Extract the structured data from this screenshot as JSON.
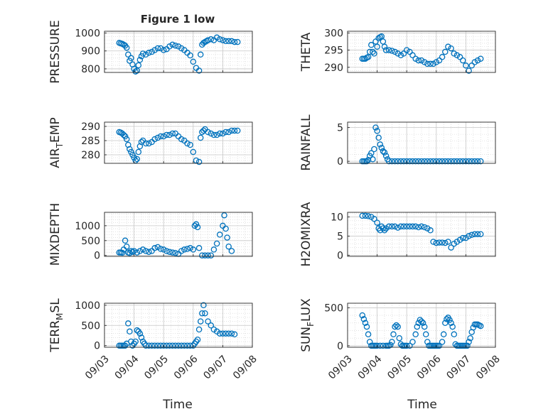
{
  "figure": {
    "title": "Figure 1 low",
    "xlabel": "Time"
  },
  "colors": {
    "marker": "#0072BD",
    "axis": "#262626",
    "grid": "#d0d0d0",
    "background": "#ffffff"
  },
  "chart_data": [
    {
      "type": "scatter",
      "marker": "circle-open",
      "title": "Figure 1 low",
      "ylabel": "PRESSURE",
      "xlim": [
        "09/03",
        "09/08"
      ],
      "ylim": [
        780,
        1010
      ],
      "yticks": [
        800,
        900,
        1000
      ],
      "xticks": [
        "09/03",
        "09/04",
        "09/05",
        "09/06",
        "09/07",
        "09/08"
      ],
      "grid": "minor",
      "x": [
        3.5,
        3.55,
        3.6,
        3.65,
        3.7,
        3.75,
        3.8,
        3.85,
        3.9,
        3.95,
        4.0,
        4.05,
        4.1,
        4.15,
        4.2,
        4.25,
        4.3,
        4.4,
        4.5,
        4.6,
        4.7,
        4.8,
        4.9,
        5.0,
        5.1,
        5.2,
        5.3,
        5.4,
        5.5,
        5.6,
        5.7,
        5.8,
        5.9,
        6.0,
        6.1,
        6.2,
        6.25,
        6.3,
        6.35,
        6.4,
        6.45,
        6.5,
        6.6,
        6.7,
        6.8,
        6.9,
        7.0,
        7.1,
        7.2,
        7.3,
        7.4,
        7.5
      ],
      "y": [
        945,
        942,
        940,
        935,
        930,
        918,
        880,
        845,
        860,
        825,
        800,
        785,
        790,
        820,
        850,
        870,
        885,
        880,
        890,
        895,
        905,
        915,
        915,
        905,
        910,
        925,
        935,
        930,
        925,
        915,
        905,
        890,
        875,
        840,
        805,
        790,
        880,
        935,
        945,
        950,
        955,
        960,
        965,
        960,
        975,
        965,
        960,
        955,
        955,
        955,
        950,
        950
      ]
    },
    {
      "type": "scatter",
      "marker": "circle-open",
      "ylabel": "THETA",
      "xlim": [
        "09/03",
        "09/08"
      ],
      "ylim": [
        288.5,
        300.5
      ],
      "yticks": [
        290,
        295,
        300
      ],
      "xticks": [
        "09/03",
        "09/04",
        "09/05",
        "09/06",
        "09/07",
        "09/08"
      ],
      "grid": "minor",
      "x": [
        3.5,
        3.55,
        3.6,
        3.65,
        3.7,
        3.75,
        3.8,
        3.85,
        3.9,
        3.95,
        4.0,
        4.05,
        4.1,
        4.15,
        4.2,
        4.25,
        4.3,
        4.4,
        4.5,
        4.6,
        4.7,
        4.8,
        4.9,
        5.0,
        5.1,
        5.2,
        5.3,
        5.4,
        5.5,
        5.6,
        5.7,
        5.8,
        5.9,
        6.0,
        6.1,
        6.2,
        6.3,
        6.4,
        6.5,
        6.6,
        6.7,
        6.8,
        6.9,
        7.0,
        7.1,
        7.2,
        7.3,
        7.4,
        7.5
      ],
      "y": [
        292.5,
        292.5,
        292.5,
        292.8,
        293.0,
        294.5,
        296.5,
        294.5,
        294.0,
        297.5,
        296.0,
        298.5,
        298.8,
        299.0,
        297.5,
        296.0,
        295.0,
        295.0,
        294.8,
        294.5,
        294.0,
        293.5,
        294.0,
        295.0,
        294.5,
        293.5,
        292.5,
        292.0,
        292.0,
        291.5,
        291.0,
        291.0,
        291.0,
        291.5,
        292.0,
        293.0,
        294.5,
        296.0,
        295.5,
        294.0,
        293.5,
        293.0,
        292.0,
        290.5,
        289.0,
        290.5,
        291.5,
        292.0,
        292.5
      ]
    },
    {
      "type": "scatter",
      "marker": "circle-open",
      "ylabel": "AIR_TEMP",
      "xlim": [
        "09/03",
        "09/08"
      ],
      "ylim": [
        277,
        291.5
      ],
      "yticks": [
        280,
        285,
        290
      ],
      "xticks": [
        "09/03",
        "09/04",
        "09/05",
        "09/06",
        "09/07",
        "09/08"
      ],
      "grid": "minor",
      "x": [
        3.5,
        3.55,
        3.6,
        3.65,
        3.7,
        3.75,
        3.8,
        3.85,
        3.9,
        3.95,
        4.0,
        4.05,
        4.1,
        4.15,
        4.2,
        4.25,
        4.3,
        4.4,
        4.5,
        4.6,
        4.7,
        4.8,
        4.9,
        5.0,
        5.1,
        5.2,
        5.3,
        5.4,
        5.5,
        5.6,
        5.7,
        5.8,
        5.9,
        6.0,
        6.1,
        6.2,
        6.25,
        6.3,
        6.35,
        6.4,
        6.5,
        6.6,
        6.7,
        6.8,
        6.9,
        7.0,
        7.1,
        7.2,
        7.3,
        7.4,
        7.5
      ],
      "y": [
        288,
        287.8,
        287.5,
        287,
        286.5,
        285.5,
        283.5,
        282,
        281,
        280,
        279,
        278,
        278.5,
        281,
        283,
        284.5,
        285,
        284,
        284,
        284.5,
        285.5,
        286,
        286.5,
        286.5,
        287,
        287,
        287.5,
        287.5,
        286.5,
        285.5,
        285,
        284,
        283.5,
        281,
        278,
        277.5,
        286,
        288,
        288.5,
        289,
        288,
        287.5,
        287,
        287,
        287.5,
        287.5,
        288,
        288,
        288.5,
        288.5,
        288.5
      ]
    },
    {
      "type": "scatter",
      "marker": "circle-open",
      "ylabel": "RAINFALL",
      "xlim": [
        "09/03",
        "09/08"
      ],
      "ylim": [
        -0.3,
        5.8
      ],
      "yticks": [
        0,
        5
      ],
      "xticks": [
        "09/03",
        "09/04",
        "09/05",
        "09/06",
        "09/07",
        "09/08"
      ],
      "grid": "minor",
      "x": [
        3.5,
        3.55,
        3.6,
        3.65,
        3.7,
        3.75,
        3.8,
        3.85,
        3.9,
        3.95,
        4.0,
        4.05,
        4.1,
        4.15,
        4.2,
        4.25,
        4.3,
        4.35,
        4.4,
        4.5,
        4.6,
        4.7,
        4.8,
        4.9,
        5.0,
        5.1,
        5.2,
        5.3,
        5.4,
        5.5,
        5.6,
        5.7,
        5.8,
        5.9,
        6.0,
        6.1,
        6.2,
        6.3,
        6.4,
        6.5,
        6.6,
        6.7,
        6.8,
        6.9,
        7.0,
        7.1,
        7.2,
        7.3,
        7.4,
        7.5
      ],
      "y": [
        0,
        0,
        0,
        0,
        0.2,
        0.8,
        1.2,
        0.3,
        1.8,
        5.0,
        4.5,
        3.5,
        2.5,
        2.0,
        1.5,
        1.3,
        0.8,
        0.3,
        0,
        0,
        0,
        0,
        0,
        0,
        0,
        0,
        0,
        0,
        0,
        0,
        0,
        0,
        0,
        0,
        0,
        0,
        0,
        0,
        0,
        0,
        0,
        0,
        0,
        0,
        0,
        0,
        0,
        0,
        0,
        0
      ]
    },
    {
      "type": "scatter",
      "marker": "circle-open",
      "ylabel": "MIXDEPTH",
      "xlim": [
        "09/03",
        "09/08"
      ],
      "ylim": [
        -30,
        1450
      ],
      "yticks": [
        0,
        500,
        1000
      ],
      "xticks": [
        "09/03",
        "09/04",
        "09/05",
        "09/06",
        "09/07",
        "09/08"
      ],
      "grid": "minor",
      "x": [
        3.5,
        3.55,
        3.6,
        3.65,
        3.7,
        3.75,
        3.8,
        3.85,
        3.9,
        3.95,
        4.0,
        4.1,
        4.2,
        4.3,
        4.4,
        4.5,
        4.6,
        4.7,
        4.8,
        4.9,
        5.0,
        5.1,
        5.2,
        5.3,
        5.4,
        5.5,
        5.6,
        5.7,
        5.8,
        5.9,
        6.0,
        6.05,
        6.1,
        6.15,
        6.2,
        6.3,
        6.4,
        6.5,
        6.6,
        6.7,
        6.8,
        6.9,
        7.0,
        7.05,
        7.1,
        7.15,
        7.2,
        7.3
      ],
      "y": [
        100,
        100,
        90,
        200,
        500,
        300,
        100,
        80,
        150,
        120,
        150,
        100,
        150,
        200,
        150,
        120,
        150,
        250,
        280,
        220,
        200,
        150,
        120,
        100,
        80,
        50,
        150,
        200,
        220,
        250,
        200,
        1000,
        1050,
        950,
        250,
        0,
        0,
        0,
        0,
        200,
        400,
        700,
        1000,
        1350,
        900,
        600,
        300,
        150
      ]
    },
    {
      "type": "scatter",
      "marker": "circle-open",
      "ylabel": "H2OMIXRA",
      "xlim": [
        "09/03",
        "09/08"
      ],
      "ylim": [
        -0.3,
        11.2
      ],
      "yticks": [
        0,
        5,
        10
      ],
      "xticks": [
        "09/03",
        "09/04",
        "09/05",
        "09/06",
        "09/07",
        "09/08"
      ],
      "grid": "minor",
      "x": [
        3.5,
        3.6,
        3.7,
        3.8,
        3.9,
        4.0,
        4.05,
        4.1,
        4.15,
        4.2,
        4.25,
        4.3,
        4.4,
        4.5,
        4.6,
        4.7,
        4.8,
        4.9,
        5.0,
        5.1,
        5.2,
        5.3,
        5.4,
        5.5,
        5.6,
        5.7,
        5.8,
        5.9,
        6.0,
        6.1,
        6.2,
        6.3,
        6.4,
        6.5,
        6.6,
        6.7,
        6.8,
        6.9,
        7.0,
        7.1,
        7.2,
        7.3,
        7.4,
        7.5
      ],
      "y": [
        10.3,
        10.3,
        10.2,
        10.0,
        9.5,
        8.5,
        7.0,
        6.5,
        7.5,
        7.0,
        6.5,
        7.0,
        7.5,
        7.5,
        7.5,
        7.2,
        7.5,
        7.5,
        7.5,
        7.5,
        7.5,
        7.5,
        7.3,
        7.5,
        7.3,
        7.0,
        6.5,
        3.5,
        3.2,
        3.3,
        3.3,
        3.2,
        3.5,
        2.0,
        3.0,
        3.5,
        4.0,
        4.5,
        4.5,
        5.0,
        5.3,
        5.5,
        5.5,
        5.5
      ]
    },
    {
      "type": "scatter",
      "marker": "circle-open",
      "ylabel": "TERR_MSL",
      "xlim": [
        "09/03",
        "09/08"
      ],
      "ylim": [
        -40,
        1050
      ],
      "yticks": [
        0,
        500,
        1000
      ],
      "xticks": [
        "09/03",
        "09/04",
        "09/05",
        "09/06",
        "09/07",
        "09/08"
      ],
      "grid": "minor",
      "x": [
        3.5,
        3.55,
        3.6,
        3.65,
        3.7,
        3.75,
        3.8,
        3.85,
        3.9,
        3.95,
        4.0,
        4.05,
        4.1,
        4.15,
        4.2,
        4.25,
        4.3,
        4.35,
        4.4,
        4.5,
        4.6,
        4.7,
        4.8,
        4.9,
        5.0,
        5.1,
        5.2,
        5.3,
        5.4,
        5.5,
        5.6,
        5.7,
        5.8,
        5.9,
        6.0,
        6.05,
        6.1,
        6.15,
        6.2,
        6.25,
        6.3,
        6.35,
        6.4,
        6.5,
        6.6,
        6.7,
        6.8,
        6.9,
        7.0,
        7.1,
        7.2,
        7.3,
        7.4
      ],
      "y": [
        0,
        0,
        0,
        0,
        0,
        50,
        550,
        350,
        100,
        0,
        50,
        100,
        380,
        350,
        300,
        200,
        100,
        50,
        0,
        0,
        0,
        0,
        0,
        0,
        0,
        0,
        0,
        0,
        0,
        0,
        0,
        0,
        0,
        0,
        0,
        50,
        100,
        150,
        400,
        600,
        800,
        1000,
        800,
        600,
        500,
        400,
        350,
        300,
        300,
        300,
        300,
        300,
        280
      ]
    },
    {
      "type": "scatter",
      "marker": "circle-open",
      "ylabel": "SUN_FLUX",
      "xlim": [
        "09/03",
        "09/08"
      ],
      "ylim": [
        -20,
        560
      ],
      "yticks": [
        0,
        500
      ],
      "xticks": [
        "09/03",
        "09/04",
        "09/05",
        "09/06",
        "09/07",
        "09/08"
      ],
      "grid": "minor",
      "x": [
        3.5,
        3.55,
        3.6,
        3.65,
        3.7,
        3.75,
        3.8,
        3.85,
        3.9,
        3.95,
        4.0,
        4.1,
        4.2,
        4.3,
        4.35,
        4.4,
        4.45,
        4.5,
        4.55,
        4.6,
        4.65,
        4.7,
        4.75,
        4.8,
        4.85,
        4.9,
        4.95,
        5.0,
        5.1,
        5.2,
        5.3,
        5.35,
        5.4,
        5.45,
        5.5,
        5.55,
        5.6,
        5.65,
        5.7,
        5.75,
        5.8,
        5.85,
        5.9,
        5.95,
        6.0,
        6.05,
        6.1,
        6.2,
        6.25,
        6.3,
        6.35,
        6.4,
        6.45,
        6.5,
        6.55,
        6.6,
        6.65,
        6.7,
        6.75,
        6.8,
        6.85,
        6.9,
        6.95,
        7.0,
        7.05,
        7.1,
        7.15,
        7.2,
        7.25,
        7.3,
        7.35,
        7.4,
        7.45,
        7.5
      ],
      "y": [
        400,
        350,
        300,
        250,
        150,
        50,
        0,
        0,
        0,
        0,
        0,
        0,
        0,
        0,
        0,
        0,
        10,
        50,
        150,
        250,
        270,
        250,
        100,
        20,
        0,
        0,
        0,
        0,
        0,
        50,
        150,
        250,
        300,
        340,
        320,
        300,
        250,
        150,
        50,
        0,
        0,
        0,
        0,
        0,
        0,
        0,
        0,
        50,
        150,
        300,
        350,
        370,
        340,
        300,
        250,
        150,
        20,
        0,
        0,
        0,
        0,
        0,
        0,
        0,
        0,
        50,
        100,
        180,
        240,
        280,
        280,
        280,
        270,
        260
      ]
    }
  ]
}
